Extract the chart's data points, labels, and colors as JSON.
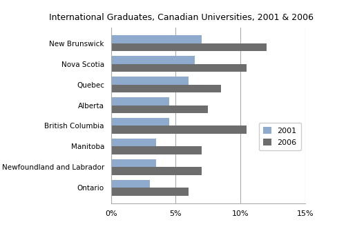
{
  "title": "International Graduates, Canadian Universities, 2001 & 2006",
  "provinces": [
    "New Brunswick",
    "Nova Scotia",
    "Quebec",
    "Alberta",
    "British Columbia",
    "Manitoba",
    "Newfoundland and Labrador",
    "Ontario"
  ],
  "values_2001": [
    7.0,
    6.5,
    6.0,
    4.5,
    4.5,
    3.5,
    3.5,
    3.0
  ],
  "values_2006": [
    12.0,
    10.5,
    8.5,
    7.5,
    10.5,
    7.0,
    7.0,
    6.0
  ],
  "color_2001": "#8eaacc",
  "color_2006": "#6d6d6d",
  "xlim": [
    0,
    15
  ],
  "xticks": [
    0,
    5,
    10,
    15
  ],
  "xtick_labels": [
    "0%",
    "5%",
    "10%",
    "15%"
  ],
  "legend_labels": [
    "2001",
    "2006"
  ],
  "bar_height": 0.38,
  "background_color": "#ffffff",
  "grid_color": "#aaaaaa"
}
